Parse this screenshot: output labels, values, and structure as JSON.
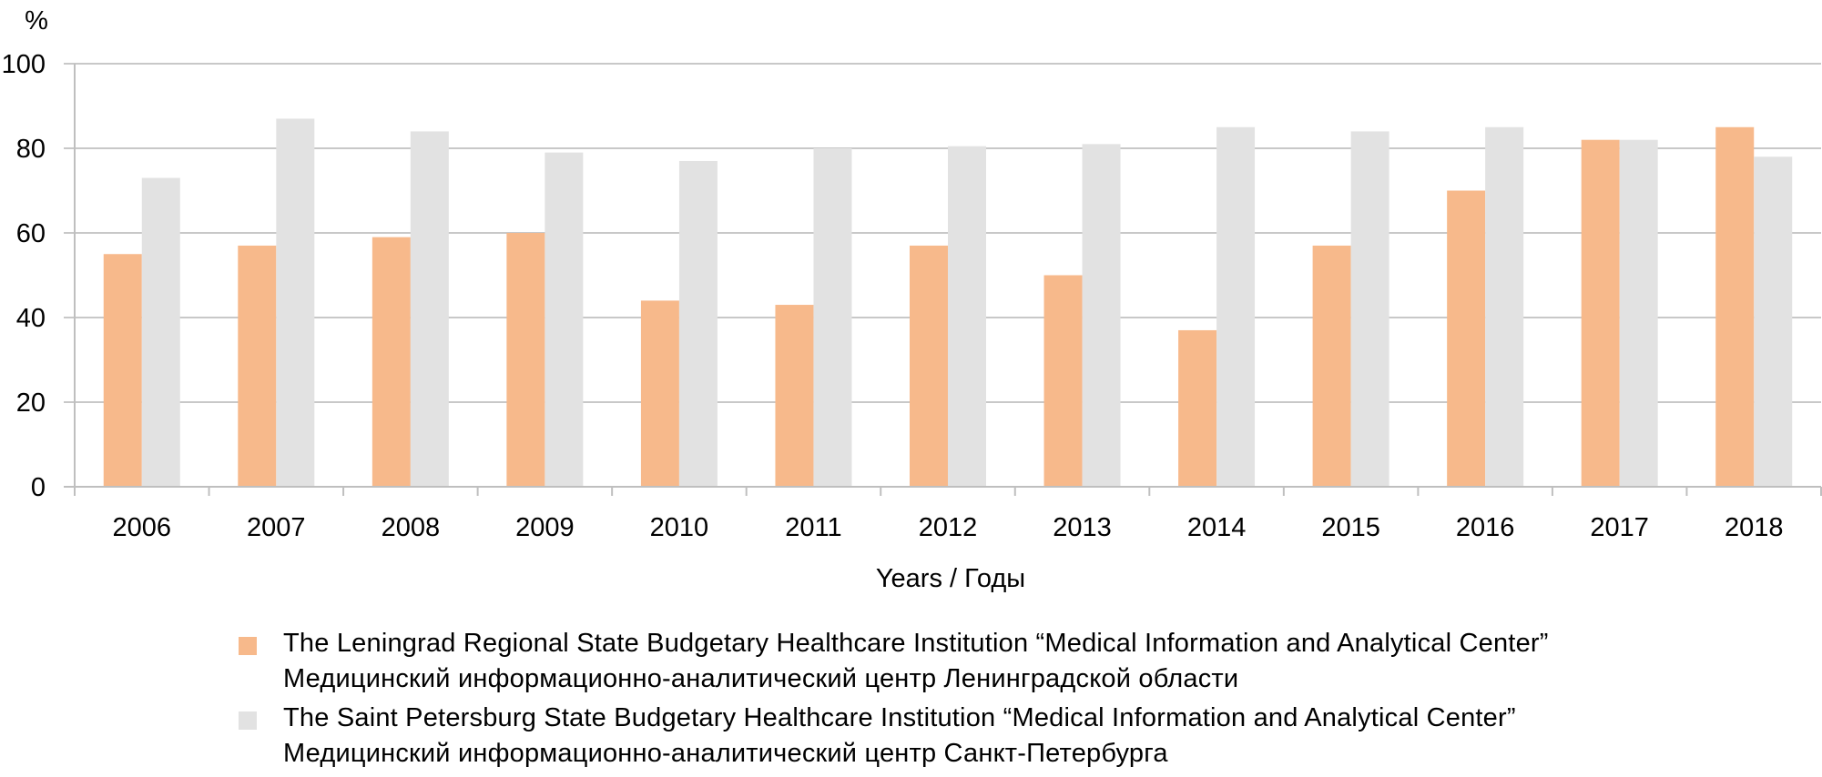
{
  "chart_data": {
    "type": "bar",
    "title": "",
    "ylabel": "%",
    "xlabel": "Years / Годы",
    "ylim": [
      0,
      100
    ],
    "yticks": [
      0,
      20,
      40,
      60,
      80,
      100
    ],
    "grid": true,
    "legend_position": "bottom",
    "categories": [
      "2006",
      "2007",
      "2008",
      "2009",
      "2010",
      "2011",
      "2012",
      "2013",
      "2014",
      "2015",
      "2016",
      "2017",
      "2018"
    ],
    "series": [
      {
        "name": "The Leningrad Regional State Budgetary Healthcare Institution “Medical Information and Analytical Center”",
        "name_ru": "Медицинский информационно-аналитический центр Ленинградской области",
        "color": "#F7B98B",
        "values": [
          55,
          57,
          59,
          60,
          44,
          43,
          57,
          50,
          37,
          57,
          70,
          82,
          85
        ]
      },
      {
        "name": "The Saint Petersburg State Budgetary Healthcare Institution “Medical Information and Analytical Center”",
        "name_ru": "Медицинский информационно-аналитический центр Санкт-Петербурга",
        "color": "#E2E2E2",
        "values": [
          73,
          87,
          84,
          79,
          77,
          80,
          80.5,
          81,
          85,
          84,
          85,
          82,
          78
        ]
      }
    ]
  },
  "colors": {
    "grid": "#C8C8C8",
    "axis": "#BFBFBF"
  }
}
